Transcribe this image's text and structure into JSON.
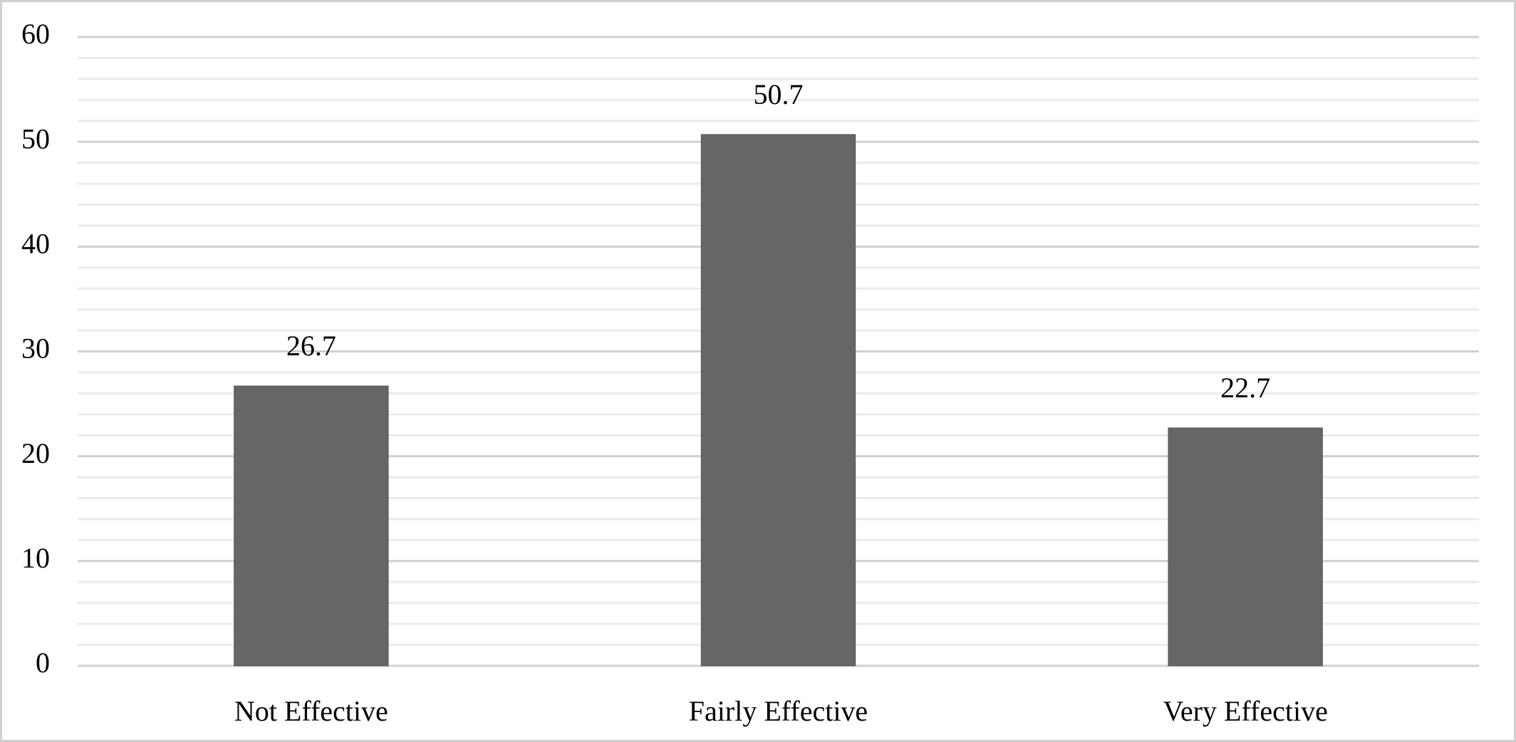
{
  "chart_data": {
    "type": "bar",
    "categories": [
      "Not Effective",
      "Fairly Effective",
      "Very Effective"
    ],
    "values": [
      26.7,
      50.7,
      22.7
    ],
    "color": "#666666",
    "ylim": [
      0,
      60
    ],
    "yticks": [
      0,
      10,
      20,
      30,
      40,
      50,
      60
    ],
    "grid": true,
    "minor_grid": true,
    "data_labels": true
  }
}
